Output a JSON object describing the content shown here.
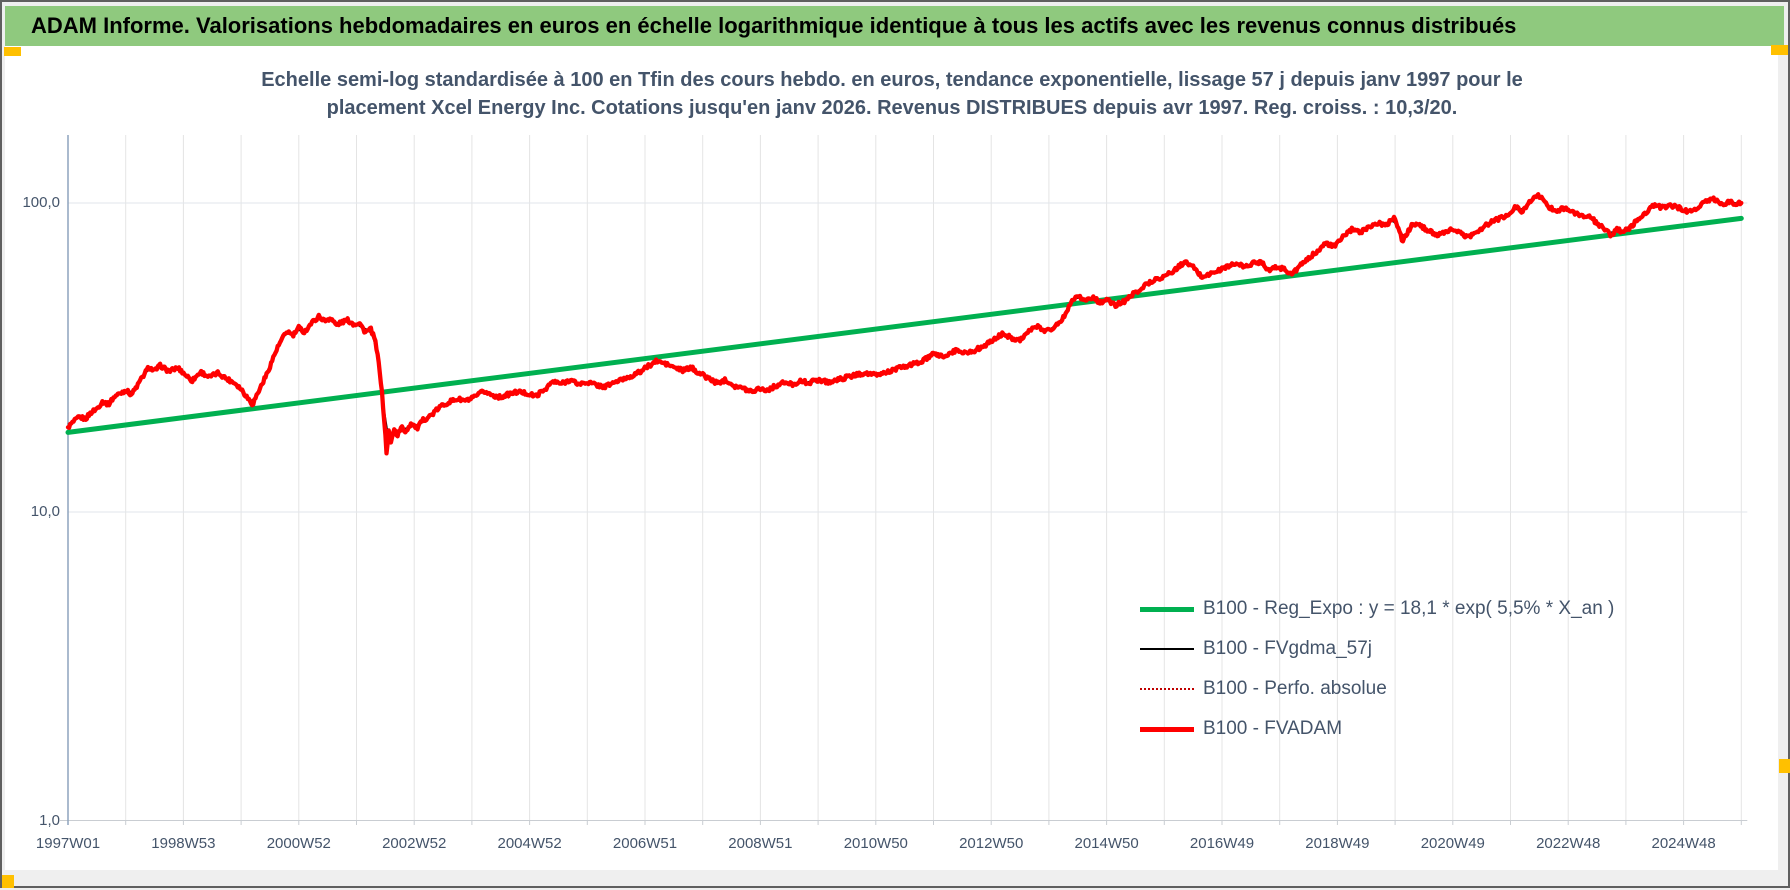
{
  "header": {
    "title": "ADAM Informe. Valorisations hebdomadaires en euros en échelle logarithmique identique à tous les actifs avec les revenus connus distribués",
    "bg_color": "#8FC97E",
    "handle_color": "#FFC000"
  },
  "chart_data": {
    "type": "line",
    "title_line1": "Echelle semi-log standardisée à 100 en Tfin des cours hebdo. en euros, tendance exponentielle, lissage 57 j depuis janv 1997 pour le",
    "title_line2": "placement Xcel Energy Inc. Cotations jusqu'en janv 2026. Revenus DISTRIBUES depuis avr 1997. Reg. croiss. : 10,3/20.",
    "title_color": "#44546A",
    "y_axis": {
      "scale": "log",
      "tick_labels": [
        "100,0",
        "10,0",
        "1,0"
      ],
      "tick_values": [
        100,
        10,
        1
      ],
      "min": 1,
      "max": 160
    },
    "x_axis": {
      "start_year": 1997,
      "end_year": 2026,
      "gridline_every_years": 1,
      "label_every_years": 2,
      "tick_labels": [
        "1997W01",
        "1998W53",
        "2000W52",
        "2002W52",
        "2004W52",
        "2006W51",
        "2008W51",
        "2010W50",
        "2012W50",
        "2014W50",
        "2016W49",
        "2018W49",
        "2020W49",
        "2022W48",
        "2024W48"
      ]
    },
    "grid": {
      "vertical": true,
      "horizontal_at": [
        10,
        100
      ]
    },
    "legend_position": "right-lower",
    "series": [
      {
        "name": "B100 - Reg_Expo : y = 18,1 * exp( 5,5% *  X_an )",
        "color": "#00B050",
        "style": "solid-thick",
        "model": {
          "type": "exponential",
          "a": 18.1,
          "rate_per_year": 0.055,
          "x0_year": 1997
        }
      },
      {
        "name": "B100 - FVgdma_57j",
        "color": "#000000",
        "style": "solid-thin",
        "derived": "moving_average_57d_of_FVADAM"
      },
      {
        "name": "B100 - Perfo. absolue",
        "color": "#C00000",
        "style": "dotted",
        "derived": "coincides_with_FVADAM"
      },
      {
        "name": "B100 - FVADAM",
        "color": "#FF0000",
        "style": "solid-thick",
        "final_standardized_value": 100,
        "points": [
          [
            1997.0,
            18.8
          ],
          [
            1997.1,
            19.6
          ],
          [
            1997.2,
            20.3
          ],
          [
            1997.3,
            20.0
          ],
          [
            1997.4,
            21.0
          ],
          [
            1997.5,
            21.6
          ],
          [
            1997.6,
            22.8
          ],
          [
            1997.7,
            22.3
          ],
          [
            1997.8,
            23.6
          ],
          [
            1997.9,
            24.2
          ],
          [
            1998.0,
            24.8
          ],
          [
            1998.1,
            24.0
          ],
          [
            1998.2,
            25.6
          ],
          [
            1998.3,
            27.5
          ],
          [
            1998.4,
            29.4
          ],
          [
            1998.5,
            28.6
          ],
          [
            1998.6,
            29.8
          ],
          [
            1998.75,
            28.5
          ],
          [
            1998.9,
            29.3
          ],
          [
            1999.0,
            28.2
          ],
          [
            1999.15,
            26.6
          ],
          [
            1999.3,
            28.4
          ],
          [
            1999.45,
            27.3
          ],
          [
            1999.6,
            28.2
          ],
          [
            1999.75,
            27.0
          ],
          [
            1999.9,
            26.1
          ],
          [
            2000.0,
            25.0
          ],
          [
            2000.1,
            23.6
          ],
          [
            2000.2,
            22.3
          ],
          [
            2000.3,
            24.5
          ],
          [
            2000.45,
            28.0
          ],
          [
            2000.6,
            33.0
          ],
          [
            2000.7,
            36.0
          ],
          [
            2000.8,
            38.5
          ],
          [
            2000.9,
            37.2
          ],
          [
            2001.0,
            39.5
          ],
          [
            2001.1,
            38.2
          ],
          [
            2001.2,
            40.5
          ],
          [
            2001.35,
            43.0
          ],
          [
            2001.45,
            41.5
          ],
          [
            2001.55,
            42.5
          ],
          [
            2001.65,
            40.2
          ],
          [
            2001.75,
            41.2
          ],
          [
            2001.85,
            41.8
          ],
          [
            2001.95,
            40.5
          ],
          [
            2002.05,
            41.0
          ],
          [
            2002.15,
            38.2
          ],
          [
            2002.25,
            39.0
          ],
          [
            2002.32,
            36.0
          ],
          [
            2002.4,
            29.0
          ],
          [
            2002.47,
            21.0
          ],
          [
            2002.52,
            15.4
          ],
          [
            2002.56,
            18.4
          ],
          [
            2002.6,
            16.6
          ],
          [
            2002.65,
            18.8
          ],
          [
            2002.7,
            17.6
          ],
          [
            2002.78,
            18.8
          ],
          [
            2002.85,
            18.2
          ],
          [
            2002.95,
            19.4
          ],
          [
            2003.05,
            18.6
          ],
          [
            2003.15,
            19.8
          ],
          [
            2003.3,
            20.6
          ],
          [
            2003.45,
            21.9
          ],
          [
            2003.6,
            22.7
          ],
          [
            2003.75,
            23.2
          ],
          [
            2003.9,
            22.9
          ],
          [
            2004.05,
            23.5
          ],
          [
            2004.2,
            24.6
          ],
          [
            2004.35,
            23.9
          ],
          [
            2004.5,
            23.5
          ],
          [
            2004.65,
            24.1
          ],
          [
            2004.8,
            24.5
          ],
          [
            2004.95,
            24.2
          ],
          [
            2005.1,
            23.7
          ],
          [
            2005.25,
            24.8
          ],
          [
            2005.4,
            26.4
          ],
          [
            2005.55,
            26.0
          ],
          [
            2005.7,
            26.8
          ],
          [
            2005.85,
            25.9
          ],
          [
            2006.0,
            26.3
          ],
          [
            2006.15,
            25.8
          ],
          [
            2006.3,
            25.4
          ],
          [
            2006.45,
            26.2
          ],
          [
            2006.6,
            26.8
          ],
          [
            2006.75,
            27.5
          ],
          [
            2006.9,
            28.3
          ],
          [
            2007.05,
            29.6
          ],
          [
            2007.2,
            30.8
          ],
          [
            2007.35,
            30.2
          ],
          [
            2007.5,
            29.4
          ],
          [
            2007.65,
            28.7
          ],
          [
            2007.8,
            29.3
          ],
          [
            2007.95,
            28.1
          ],
          [
            2008.1,
            27.1
          ],
          [
            2008.25,
            26.1
          ],
          [
            2008.4,
            26.8
          ],
          [
            2008.55,
            25.6
          ],
          [
            2008.7,
            25.1
          ],
          [
            2008.85,
            24.6
          ],
          [
            2009.0,
            25.2
          ],
          [
            2009.1,
            24.7
          ],
          [
            2009.25,
            25.5
          ],
          [
            2009.4,
            26.2
          ],
          [
            2009.55,
            25.9
          ],
          [
            2009.7,
            26.5
          ],
          [
            2009.85,
            26.2
          ],
          [
            2010.0,
            26.8
          ],
          [
            2010.2,
            26.3
          ],
          [
            2010.4,
            27.0
          ],
          [
            2010.6,
            27.6
          ],
          [
            2010.8,
            28.2
          ],
          [
            2011.0,
            27.7
          ],
          [
            2011.2,
            28.4
          ],
          [
            2011.4,
            29.2
          ],
          [
            2011.6,
            29.9
          ],
          [
            2011.8,
            30.7
          ],
          [
            2012.0,
            32.4
          ],
          [
            2012.2,
            31.9
          ],
          [
            2012.4,
            33.4
          ],
          [
            2012.6,
            32.7
          ],
          [
            2012.8,
            33.9
          ],
          [
            2013.0,
            35.6
          ],
          [
            2013.2,
            37.8
          ],
          [
            2013.35,
            36.6
          ],
          [
            2013.5,
            36.1
          ],
          [
            2013.65,
            38.5
          ],
          [
            2013.8,
            39.8
          ],
          [
            2013.95,
            38.6
          ],
          [
            2014.1,
            39.6
          ],
          [
            2014.25,
            42.5
          ],
          [
            2014.4,
            48.5
          ],
          [
            2014.5,
            50.5
          ],
          [
            2014.6,
            48.2
          ],
          [
            2014.75,
            49.5
          ],
          [
            2014.9,
            47.6
          ],
          [
            2015.0,
            48.6
          ],
          [
            2015.15,
            46.6
          ],
          [
            2015.3,
            48.0
          ],
          [
            2015.45,
            50.5
          ],
          [
            2015.6,
            53.0
          ],
          [
            2015.75,
            55.5
          ],
          [
            2015.9,
            57.0
          ],
          [
            2016.05,
            58.5
          ],
          [
            2016.2,
            61.0
          ],
          [
            2016.35,
            64.5
          ],
          [
            2016.5,
            62.0
          ],
          [
            2016.65,
            57.6
          ],
          [
            2016.8,
            59.0
          ],
          [
            2016.95,
            60.5
          ],
          [
            2017.1,
            62.5
          ],
          [
            2017.25,
            63.5
          ],
          [
            2017.4,
            62.1
          ],
          [
            2017.55,
            64.0
          ],
          [
            2017.7,
            64.5
          ],
          [
            2017.8,
            60.6
          ],
          [
            2017.95,
            62.0
          ],
          [
            2018.1,
            61.0
          ],
          [
            2018.2,
            58.6
          ],
          [
            2018.35,
            62.5
          ],
          [
            2018.5,
            66.0
          ],
          [
            2018.65,
            70.0
          ],
          [
            2018.8,
            74.0
          ],
          [
            2018.95,
            72.2
          ],
          [
            2019.1,
            78.0
          ],
          [
            2019.25,
            82.0
          ],
          [
            2019.4,
            80.5
          ],
          [
            2019.55,
            84.0
          ],
          [
            2019.7,
            86.0
          ],
          [
            2019.85,
            84.6
          ],
          [
            2019.98,
            90.5
          ],
          [
            2020.13,
            75.0
          ],
          [
            2020.22,
            80.5
          ],
          [
            2020.32,
            86.0
          ],
          [
            2020.45,
            84.0
          ],
          [
            2020.6,
            81.0
          ],
          [
            2020.75,
            78.6
          ],
          [
            2020.9,
            80.5
          ],
          [
            2021.0,
            82.5
          ],
          [
            2021.12,
            80.0
          ],
          [
            2021.25,
            77.6
          ],
          [
            2021.4,
            80.0
          ],
          [
            2021.55,
            84.0
          ],
          [
            2021.7,
            87.5
          ],
          [
            2021.85,
            89.5
          ],
          [
            2021.97,
            91.5
          ],
          [
            2022.1,
            97.5
          ],
          [
            2022.2,
            94.0
          ],
          [
            2022.3,
            99.0
          ],
          [
            2022.45,
            106.5
          ],
          [
            2022.55,
            103.0
          ],
          [
            2022.68,
            96.5
          ],
          [
            2022.8,
            94.6
          ],
          [
            2022.9,
            96.1
          ],
          [
            2023.0,
            95.5
          ],
          [
            2023.1,
            92.6
          ],
          [
            2023.25,
            91.0
          ],
          [
            2023.4,
            89.5
          ],
          [
            2023.52,
            85.0
          ],
          [
            2023.62,
            82.6
          ],
          [
            2023.75,
            78.6
          ],
          [
            2023.85,
            82.0
          ],
          [
            2023.95,
            80.6
          ],
          [
            2024.05,
            82.6
          ],
          [
            2024.2,
            88.0
          ],
          [
            2024.35,
            93.5
          ],
          [
            2024.5,
            98.5
          ],
          [
            2024.62,
            96.6
          ],
          [
            2024.75,
            98.0
          ],
          [
            2024.88,
            97.0
          ],
          [
            2025.0,
            95.0
          ],
          [
            2025.12,
            93.6
          ],
          [
            2025.25,
            96.5
          ],
          [
            2025.4,
            101.5
          ],
          [
            2025.5,
            104.0
          ],
          [
            2025.6,
            100.6
          ],
          [
            2025.7,
            99.0
          ],
          [
            2025.8,
            101.0
          ],
          [
            2025.9,
            99.6
          ],
          [
            2026.0,
            100.0
          ]
        ]
      }
    ]
  }
}
